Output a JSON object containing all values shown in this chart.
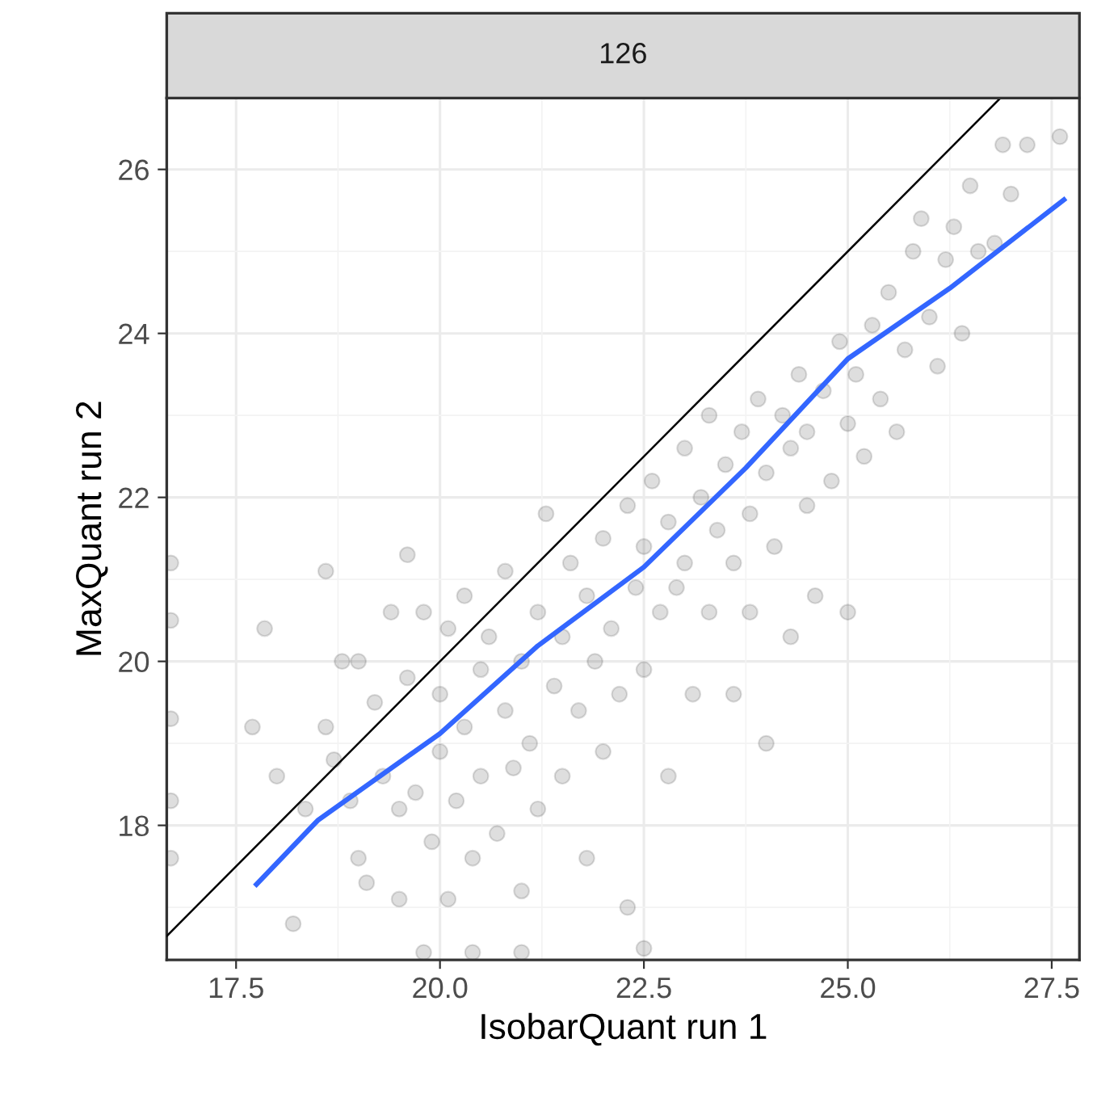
{
  "chart_data": {
    "type": "scatter",
    "title": "126",
    "xlabel": "IsobarQuant run 1",
    "ylabel": "MaxQuant run 2",
    "xlim": [
      16.65,
      27.84
    ],
    "ylim": [
      16.36,
      26.87
    ],
    "xticks": [
      {
        "value": 17.5,
        "label": "17.5"
      },
      {
        "value": 20,
        "label": "20.0"
      },
      {
        "value": 22.5,
        "label": "22.5"
      },
      {
        "value": 25,
        "label": "25.0"
      },
      {
        "value": 27.5,
        "label": "27.5"
      }
    ],
    "yticks": [
      18,
      20,
      22,
      24,
      26
    ],
    "grid": true,
    "series": [
      {
        "color": "#000000",
        "marker": "circle",
        "x": [
          17.7,
          17.85,
          18.2,
          18.0,
          18.35,
          18.6,
          18.6,
          18.7,
          18.8,
          18.9,
          19.0,
          19.0,
          19.1,
          19.2,
          19.3,
          19.4,
          19.5,
          19.5,
          19.6,
          19.6,
          19.7,
          19.8,
          19.9,
          20.0,
          20.0,
          20.1,
          20.1,
          20.2,
          20.3,
          20.3,
          20.4,
          20.5,
          20.5,
          20.6,
          20.7,
          20.8,
          20.8,
          20.9,
          21.0,
          21.0,
          21.1,
          21.2,
          21.2,
          21.3,
          21.4,
          21.5,
          21.5,
          21.6,
          21.7,
          21.8,
          21.8,
          21.9,
          22.0,
          22.0,
          22.1,
          22.2,
          22.3,
          22.3,
          22.4,
          22.5,
          22.5,
          22.6,
          22.7,
          22.8,
          22.8,
          22.9,
          23.0,
          23.0,
          23.1,
          23.2,
          23.3,
          23.3,
          23.4,
          23.5,
          23.6,
          23.6,
          23.7,
          23.8,
          23.8,
          23.9,
          24.0,
          24.0,
          24.1,
          24.2,
          24.3,
          24.3,
          24.4,
          24.5,
          24.5,
          24.6,
          24.7,
          24.8,
          24.9,
          25.0,
          25.0,
          25.1,
          25.2,
          25.3,
          25.4,
          25.5,
          25.6,
          25.7,
          25.8,
          26.0,
          26.1,
          26.2,
          26.3,
          26.4,
          26.6,
          26.8,
          26.9,
          27.2,
          27.6,
          27.0,
          26.5,
          25.9,
          22.5,
          21.0,
          20.4,
          19.8,
          16.7,
          16.7,
          16.7,
          16.7,
          16.7
        ],
        "values": [
          19.2,
          20.4,
          16.8,
          18.6,
          18.2,
          21.1,
          19.2,
          18.8,
          20.0,
          18.3,
          20.0,
          17.6,
          17.3,
          19.5,
          18.6,
          20.6,
          18.2,
          17.1,
          19.8,
          21.3,
          18.4,
          20.6,
          17.8,
          19.6,
          18.9,
          20.4,
          17.1,
          18.3,
          19.2,
          20.8,
          17.6,
          19.9,
          18.6,
          20.3,
          17.9,
          19.4,
          21.1,
          18.7,
          20.0,
          17.2,
          19.0,
          20.6,
          18.2,
          21.8,
          19.7,
          20.3,
          18.6,
          21.2,
          19.4,
          20.8,
          17.6,
          20.0,
          21.5,
          18.9,
          20.4,
          19.6,
          21.9,
          17.0,
          20.9,
          21.4,
          19.9,
          22.2,
          20.6,
          21.7,
          18.6,
          20.9,
          22.6,
          21.2,
          19.6,
          22.0,
          20.6,
          23.0,
          21.6,
          22.4,
          19.6,
          21.2,
          22.8,
          21.8,
          20.6,
          23.2,
          22.3,
          19.0,
          21.4,
          23.0,
          22.6,
          20.3,
          23.5,
          21.9,
          22.8,
          20.8,
          23.3,
          22.2,
          23.9,
          22.9,
          20.6,
          23.5,
          22.5,
          24.1,
          23.2,
          24.5,
          22.8,
          23.8,
          25.0,
          24.2,
          23.6,
          24.9,
          25.3,
          24.0,
          25.0,
          25.1,
          26.3,
          26.3,
          26.4,
          25.7,
          25.8,
          25.4,
          16.5,
          16.45,
          16.45,
          16.45,
          21.2,
          19.3,
          18.3,
          17.6,
          20.5
        ]
      },
      {
        "type": "line",
        "color": "#000000",
        "x": [
          16.65,
          26.87
        ],
        "values": [
          16.65,
          26.87
        ]
      },
      {
        "type": "line",
        "color": "#3366ff",
        "x": [
          17.75,
          18.5,
          20.0,
          21.2,
          22.5,
          23.75,
          25.0,
          26.25,
          27.65
        ],
        "values": [
          17.28,
          18.06,
          19.12,
          20.19,
          21.15,
          22.36,
          23.69,
          24.55,
          25.63
        ]
      }
    ]
  }
}
